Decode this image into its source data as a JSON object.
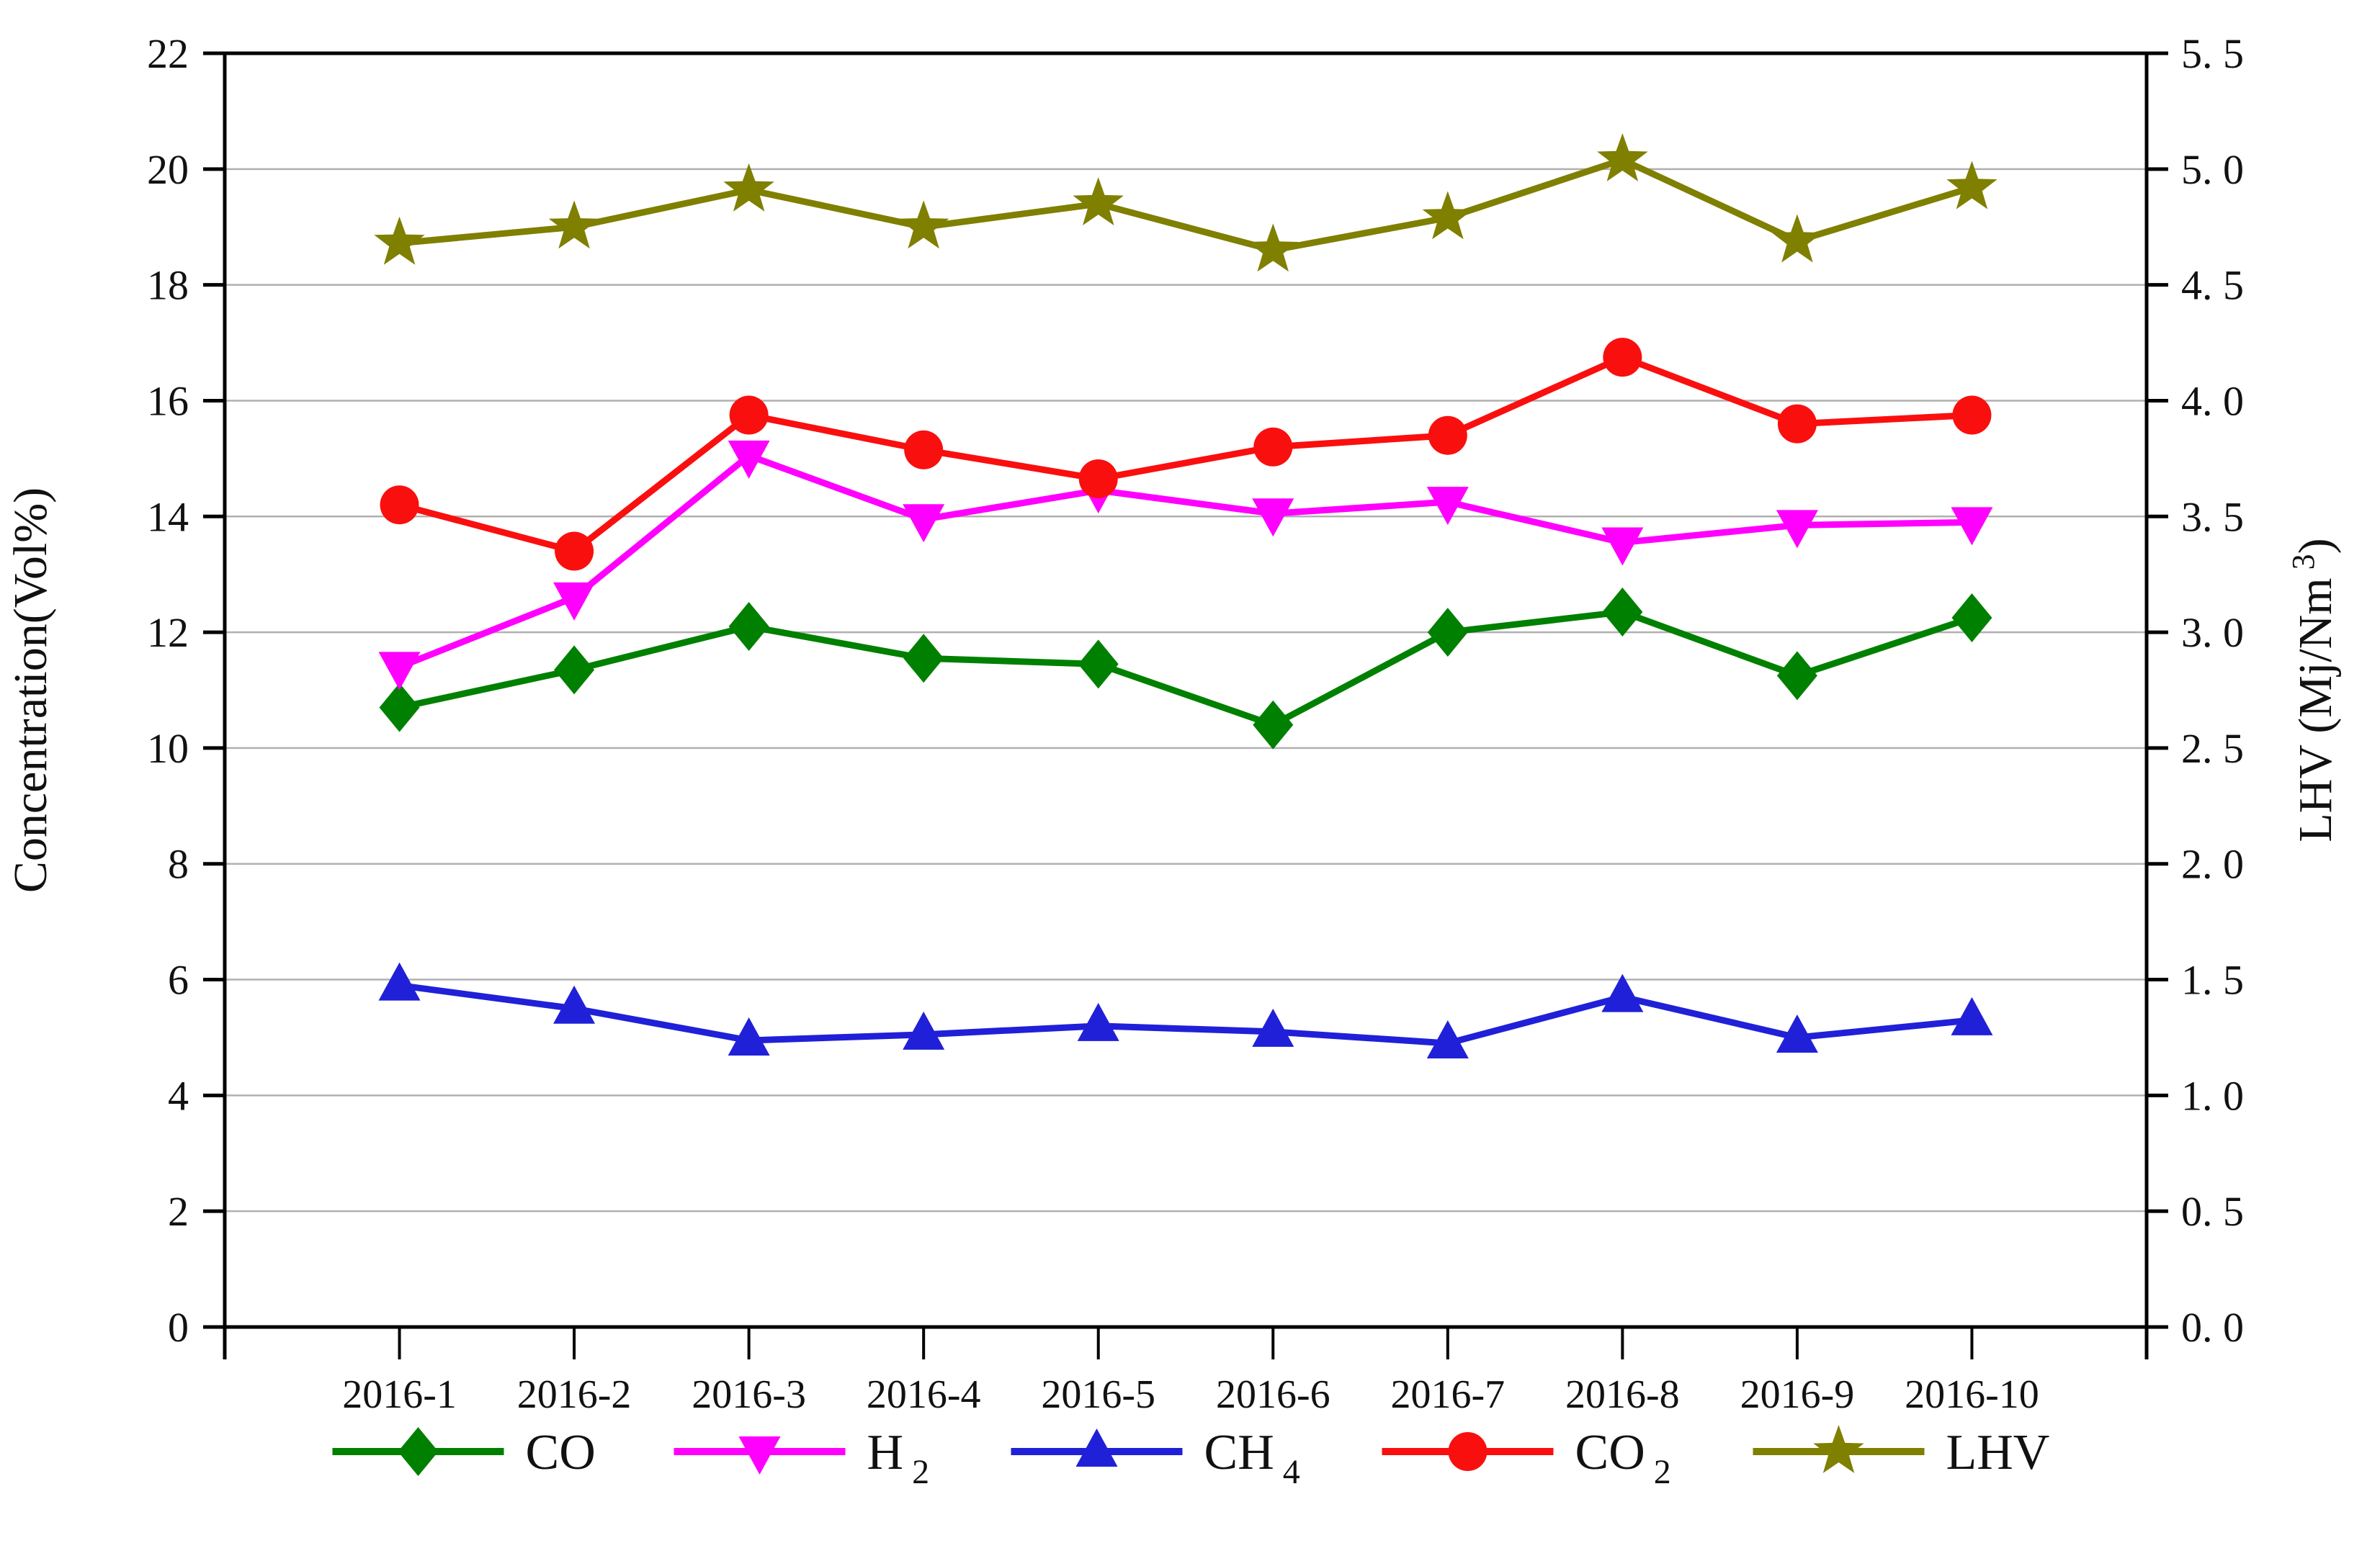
{
  "chart_data": {
    "type": "line",
    "title": "",
    "categories": [
      "2016-1",
      "2016-2",
      "2016-3",
      "2016-4",
      "2016-5",
      "2016-6",
      "2016-7",
      "2016-8",
      "2016-9",
      "2016-10"
    ],
    "series": [
      {
        "name": "CO",
        "label_main": "CO",
        "label_sub": "",
        "axis": "left",
        "marker": "diamond",
        "color": "#008000",
        "values": [
          10.7,
          11.35,
          12.1,
          11.55,
          11.45,
          10.4,
          12.0,
          12.35,
          11.25,
          12.25
        ]
      },
      {
        "name": "H2",
        "label_main": "H",
        "label_sub": "2",
        "axis": "left",
        "marker": "triangle-down",
        "color": "#ff00ff",
        "values": [
          11.4,
          12.6,
          15.05,
          13.95,
          14.45,
          14.05,
          14.25,
          13.55,
          13.85,
          13.9
        ]
      },
      {
        "name": "CH4",
        "label_main": "CH",
        "label_sub": "4",
        "axis": "left",
        "marker": "triangle-up",
        "color": "#2020d8",
        "values": [
          5.9,
          5.5,
          4.95,
          5.05,
          5.2,
          5.1,
          4.9,
          5.7,
          5.0,
          5.3
        ]
      },
      {
        "name": "CO2",
        "label_main": "CO",
        "label_sub": "2",
        "axis": "left",
        "marker": "circle",
        "color": "#fa0f0f",
        "values": [
          14.2,
          13.4,
          15.75,
          15.15,
          14.65,
          15.2,
          15.4,
          16.75,
          15.6,
          15.75
        ]
      },
      {
        "name": "LHV",
        "label_main": "LHV",
        "label_sub": "",
        "axis": "right",
        "marker": "star",
        "color": "#7f7f00",
        "values": [
          4.68,
          4.75,
          4.91,
          4.75,
          4.85,
          4.65,
          4.79,
          5.04,
          4.69,
          4.92
        ]
      }
    ],
    "left_axis": {
      "label": "Concentration(Vol%)",
      "min": 0,
      "max": 22,
      "tick_step": 2,
      "tick_labels": [
        "0",
        "2",
        "4",
        "6",
        "8",
        "10",
        "12",
        "14",
        "16",
        "18",
        "20",
        "22"
      ]
    },
    "right_axis": {
      "label_main": "LHV (Mj/Nm",
      "label_sup": "3",
      "label_end": ")",
      "min": 0,
      "max": 5.5,
      "tick_step": 0.5,
      "tick_labels": [
        "0. 0",
        "0. 5",
        "1. 0",
        "1. 5",
        "2. 0",
        "2. 5",
        "3. 0",
        "3. 5",
        "4. 0",
        "4. 5",
        "5. 0",
        "5. 5"
      ]
    },
    "grid": "horizontal",
    "grid_color": "#b0b0b0",
    "axis_color": "#000000",
    "legend_position": "bottom"
  }
}
